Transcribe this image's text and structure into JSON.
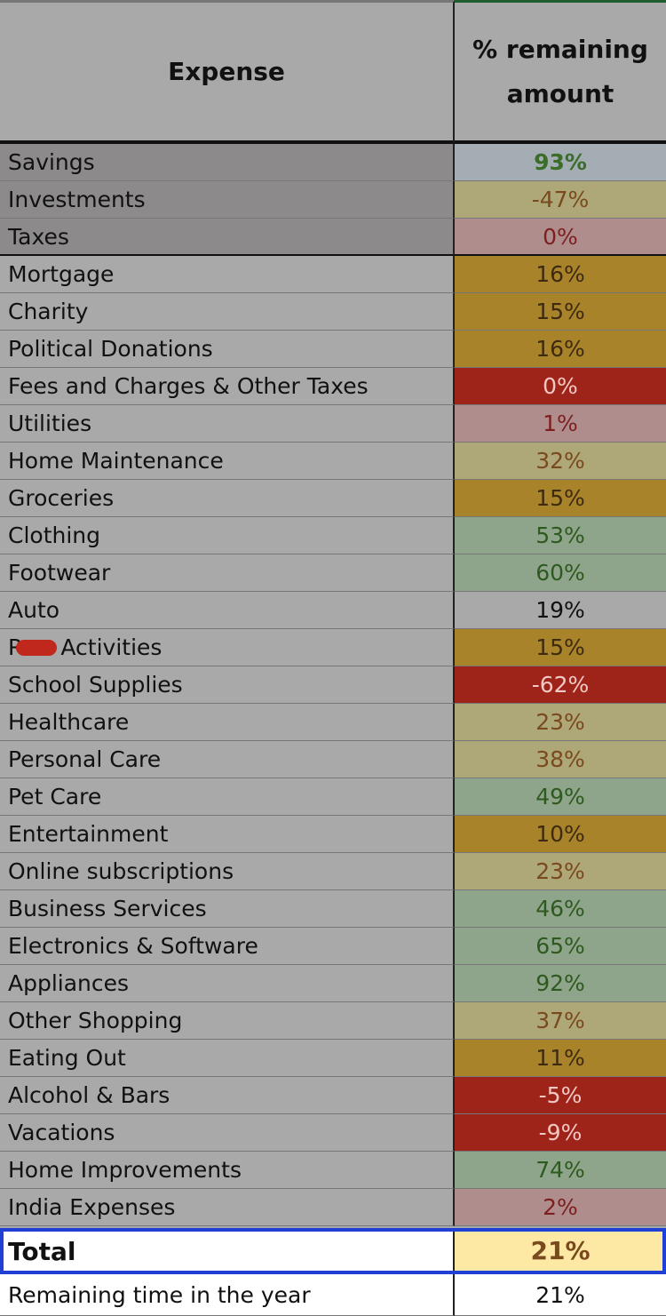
{
  "header": {
    "columns": [
      "Expense",
      "% remaining amount"
    ]
  },
  "table": {
    "rows": [
      {
        "label": "Savings",
        "value": "93%",
        "fill": "#a4adb3",
        "color": "#3b6d2a",
        "label_fill": "#8c8a8b"
      },
      {
        "label": "Investments",
        "value": "-47%",
        "fill": "#aea777",
        "color": "#7a4a1f",
        "label_fill": "#8c8a8b"
      },
      {
        "label": "Taxes",
        "value": "0%",
        "fill": "#b08d8d",
        "color": "#7e1f1f",
        "label_fill": "#8c8a8b"
      },
      {
        "label": "Mortgage",
        "value": "16%",
        "fill": "#a8832a",
        "color": "#3e2b0f"
      },
      {
        "label": "Charity",
        "value": "15%",
        "fill": "#a8832a",
        "color": "#3e2b0f"
      },
      {
        "label": "Political Donations",
        "value": "16%",
        "fill": "#a8832a",
        "color": "#3e2b0f"
      },
      {
        "label": "Fees and Charges & Other Taxes",
        "value": "0%",
        "fill": "#9e2318",
        "color": "#f2c8c4"
      },
      {
        "label": "Utilities",
        "value": "1%",
        "fill": "#b08d8d",
        "color": "#7e1f1f"
      },
      {
        "label": "Home Maintenance",
        "value": "32%",
        "fill": "#aea777",
        "color": "#7a4a1f"
      },
      {
        "label": "Groceries",
        "value": "15%",
        "fill": "#a8832a",
        "color": "#3e2b0f"
      },
      {
        "label": "Clothing",
        "value": "53%",
        "fill": "#8ea48b",
        "color": "#2f5a1f"
      },
      {
        "label": "Footwear",
        "value": "60%",
        "fill": "#8ea48b",
        "color": "#2f5a1f"
      },
      {
        "label": "Auto",
        "value": "19%",
        "fill": "#a9a9a9",
        "color": "#111111"
      },
      {
        "label": [
          "R",
          "Activities"
        ],
        "value": "15%",
        "fill": "#a8832a",
        "color": "#3e2b0f"
      },
      {
        "label": "School Supplies",
        "value": "-62%",
        "fill": "#9e2318",
        "color": "#f2c8c4"
      },
      {
        "label": "Healthcare",
        "value": "23%",
        "fill": "#aea777",
        "color": "#7a4a1f"
      },
      {
        "label": "Personal Care",
        "value": "38%",
        "fill": "#aea777",
        "color": "#7a4a1f"
      },
      {
        "label": "Pet Care",
        "value": "49%",
        "fill": "#8ea48b",
        "color": "#2f5a1f"
      },
      {
        "label": "Entertainment",
        "value": "10%",
        "fill": "#a8832a",
        "color": "#3e2b0f"
      },
      {
        "label": "Online subscriptions",
        "value": "23%",
        "fill": "#aea777",
        "color": "#7a4a1f"
      },
      {
        "label": "Business Services",
        "value": "46%",
        "fill": "#8ea48b",
        "color": "#2f5a1f"
      },
      {
        "label": "Electronics & Software",
        "value": "65%",
        "fill": "#8ea48b",
        "color": "#2f5a1f"
      },
      {
        "label": "Appliances",
        "value": "92%",
        "fill": "#8ea48b",
        "color": "#2f5a1f"
      },
      {
        "label": "Other Shopping",
        "value": "37%",
        "fill": "#aea777",
        "color": "#7a4a1f"
      },
      {
        "label": "Eating Out",
        "value": "11%",
        "fill": "#a8832a",
        "color": "#3e2b0f"
      },
      {
        "label": "Alcohol & Bars",
        "value": "-5%",
        "fill": "#9e2318",
        "color": "#f2c8c4"
      },
      {
        "label": "Vacations",
        "value": "-9%",
        "fill": "#9e2318",
        "color": "#f2c8c4"
      },
      {
        "label": "Home Improvements",
        "value": "74%",
        "fill": "#8ea48b",
        "color": "#2f5a1f"
      },
      {
        "label": "India Expenses",
        "value": "2%",
        "fill": "#b08d8d",
        "color": "#7e1f1f"
      }
    ]
  },
  "total": {
    "label": "Total",
    "value": "21%"
  },
  "remaining": {
    "label": "Remaining time in the year",
    "value": "21%"
  }
}
